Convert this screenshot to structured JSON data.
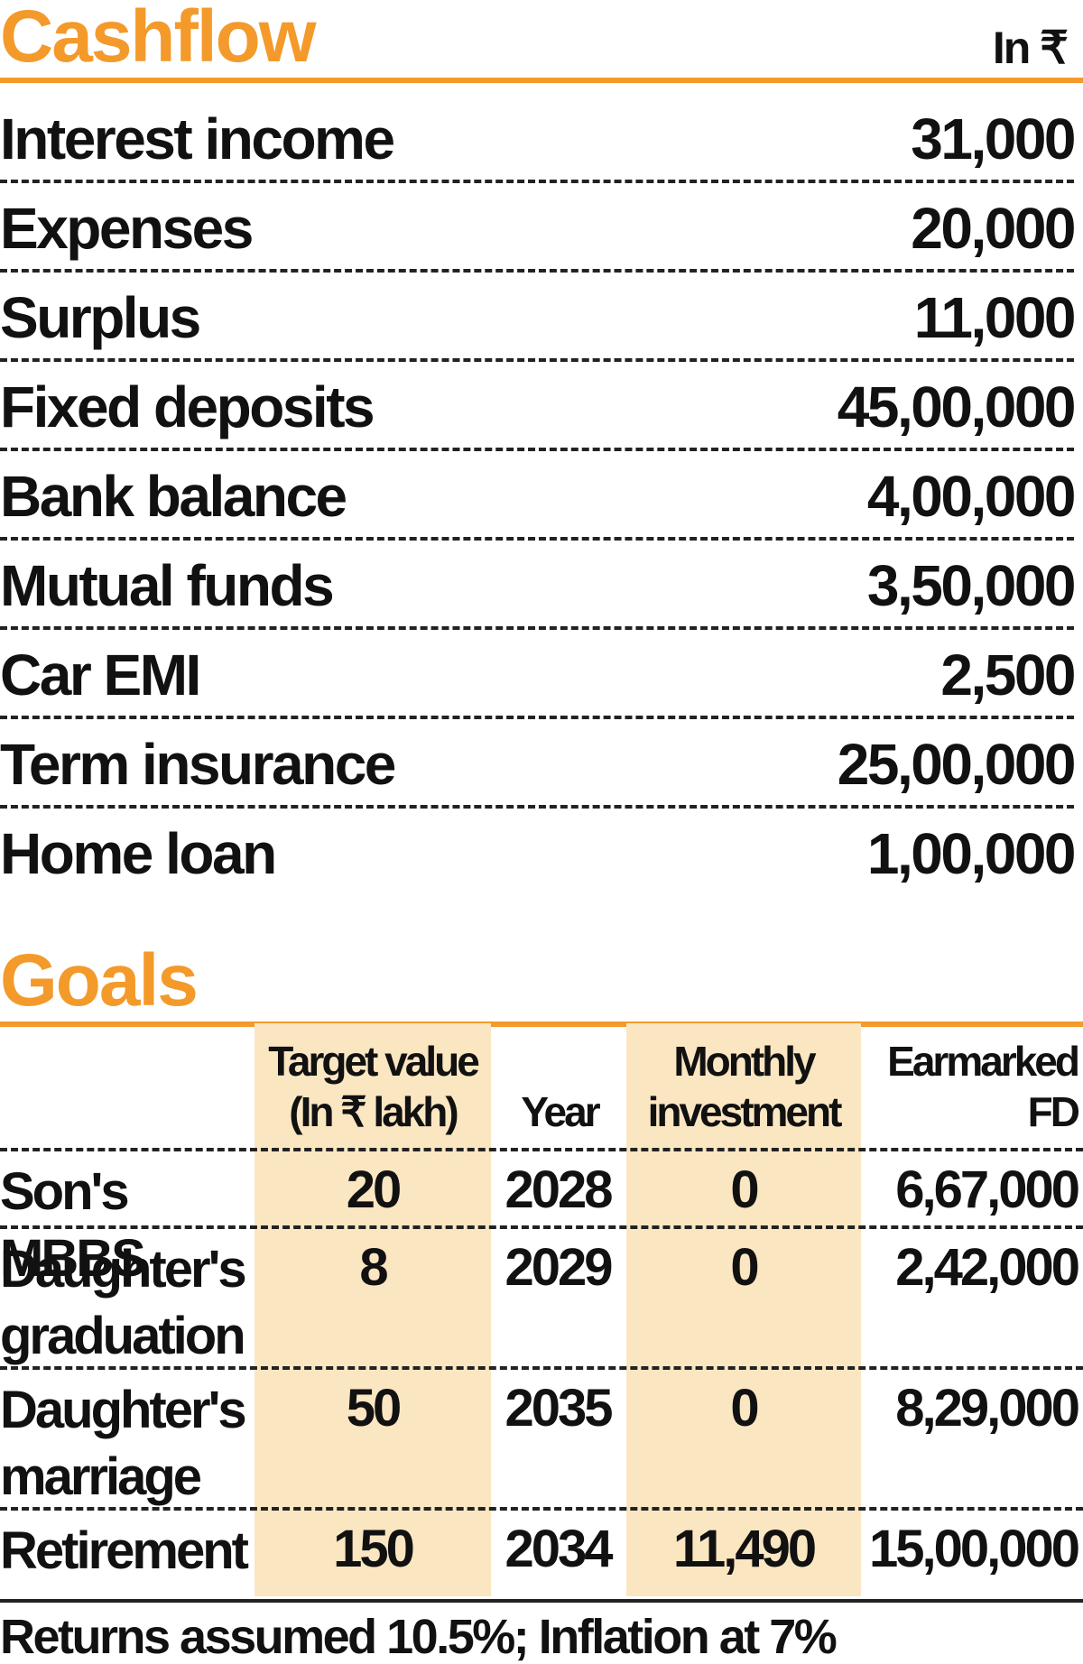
{
  "cashflow": {
    "title": "Cashflow",
    "unit": "In ₹",
    "rows": [
      {
        "label": "Interest income",
        "value": "31,000"
      },
      {
        "label": "Expenses",
        "value": "20,000"
      },
      {
        "label": "Surplus",
        "value": "11,000"
      },
      {
        "label": "Fixed deposits",
        "value": "45,00,000"
      },
      {
        "label": "Bank balance",
        "value": "4,00,000"
      },
      {
        "label": "Mutual funds",
        "value": "3,50,000"
      },
      {
        "label": "Car EMI",
        "value": "2,500"
      },
      {
        "label": "Term insurance",
        "value": "25,00,000"
      },
      {
        "label": "Home loan",
        "value": "1,00,000"
      }
    ]
  },
  "goals": {
    "title": "Goals",
    "headers": {
      "target_value": "Target value\n(In ₹ lakh)",
      "year": "Year",
      "monthly_investment": "Monthly\ninvestment",
      "earmarked_fd": "Earmarked\nFD"
    },
    "rows": [
      {
        "goal": "Son's MBBS",
        "target_value": "20",
        "year": "2028",
        "monthly_investment": "0",
        "earmarked_fd": "6,67,000"
      },
      {
        "goal": "Daughter's graduation",
        "target_value": "8",
        "year": "2029",
        "monthly_investment": "0",
        "earmarked_fd": "2,42,000"
      },
      {
        "goal": "Daughter's marriage",
        "target_value": "50",
        "year": "2035",
        "monthly_investment": "0",
        "earmarked_fd": "8,29,000"
      },
      {
        "goal": "Retirement",
        "target_value": "150",
        "year": "2034",
        "monthly_investment": "11,490",
        "earmarked_fd": "15,00,000"
      }
    ]
  },
  "footnote": "Returns assumed 10.5%; Inflation at 7%",
  "colors": {
    "accent": "#f39a2b",
    "column_shade": "#fbe6c2",
    "text": "#111111"
  }
}
